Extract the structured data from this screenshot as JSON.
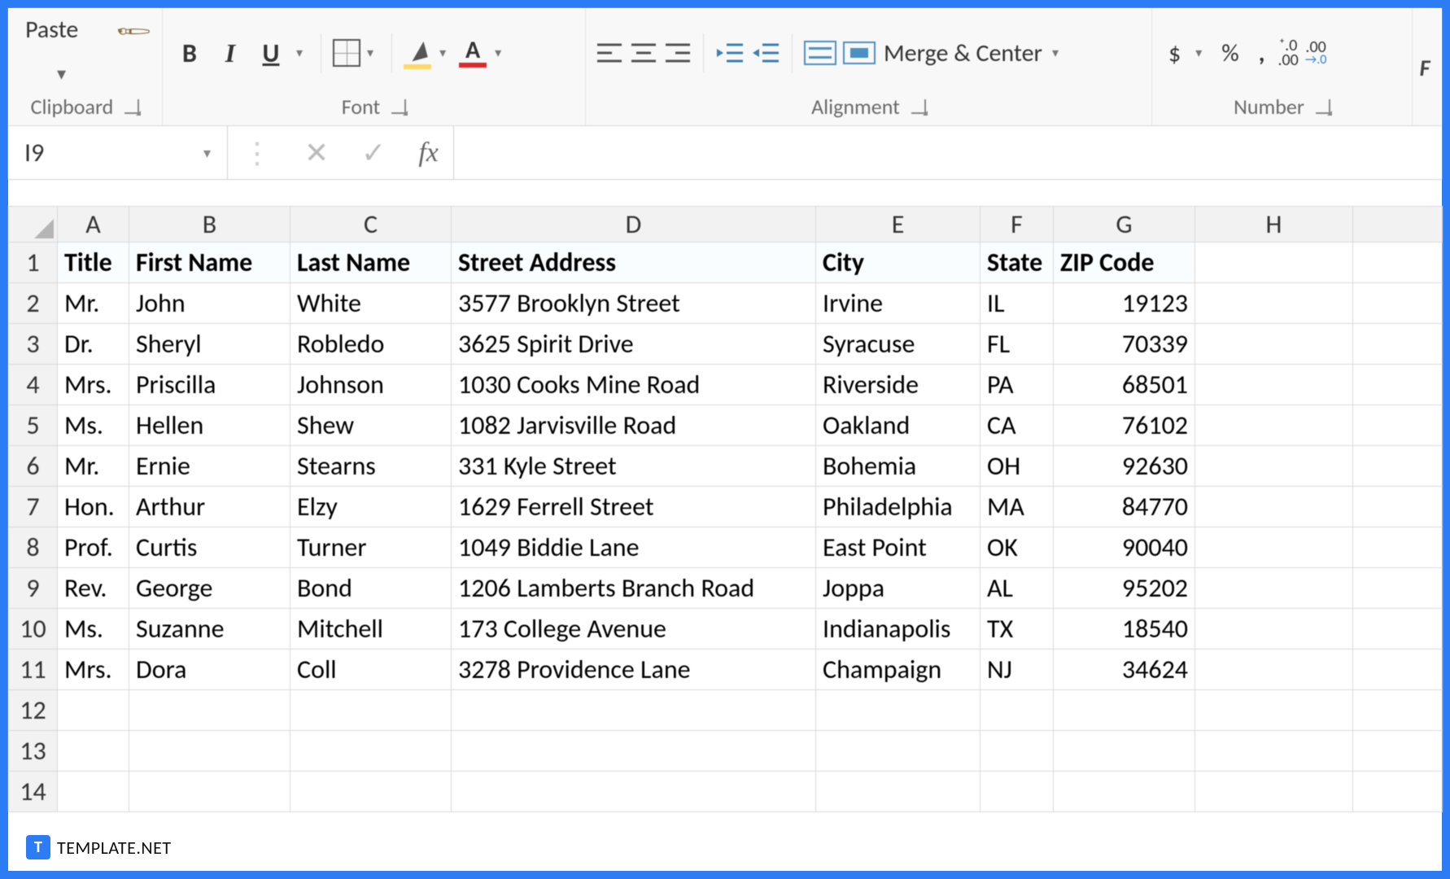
{
  "colors": {
    "frame_border": "#2b7cf5",
    "ribbon_bg": "#f8f8f8",
    "grid_border": "#d9d9d9",
    "header_fill_bg": "#fafdff",
    "fill_swatch": "#ffd966",
    "font_swatch": "#d92b2b"
  },
  "ribbon": {
    "clipboard": {
      "paste": "Paste",
      "label": "Clipboard"
    },
    "font": {
      "bold": "B",
      "italic": "I",
      "underline": "U",
      "font_color_letter": "A",
      "label": "Font"
    },
    "alignment": {
      "merge_center": "Merge & Center",
      "label": "Alignment"
    },
    "number": {
      "currency": "$",
      "percent": "%",
      "comma": ",",
      "inc_dec": ".00",
      "label": "Number"
    },
    "next_group_hint": "F"
  },
  "formula_bar": {
    "name_box": "I9",
    "fx_label": "fx",
    "value": ""
  },
  "sheet": {
    "col_letters": [
      "A",
      "B",
      "C",
      "D",
      "E",
      "F",
      "G",
      "H"
    ],
    "header_row_num": "1",
    "headers": {
      "A": "Title",
      "B": "First Name",
      "C": "Last Name",
      "D": "Street Address",
      "E": "City",
      "F": "State",
      "G": "ZIP Code"
    },
    "rows": [
      {
        "n": "2",
        "A": "Mr.",
        "B": "John",
        "C": "White",
        "D": "3577 Brooklyn Street",
        "E": "Irvine",
        "F": "IL",
        "G": "19123"
      },
      {
        "n": "3",
        "A": "Dr.",
        "B": "Sheryl",
        "C": "Robledo",
        "D": "3625 Spirit Drive",
        "E": "Syracuse",
        "F": "FL",
        "G": "70339"
      },
      {
        "n": "4",
        "A": "Mrs.",
        "B": "Priscilla",
        "C": "Johnson",
        "D": "1030 Cooks Mine Road",
        "E": "Riverside",
        "F": "PA",
        "G": "68501"
      },
      {
        "n": "5",
        "A": "Ms.",
        "B": "Hellen",
        "C": "Shew",
        "D": "1082 Jarvisville Road",
        "E": "Oakland",
        "F": "CA",
        "G": "76102"
      },
      {
        "n": "6",
        "A": "Mr.",
        "B": "Ernie",
        "C": "Stearns",
        "D": "331 Kyle Street",
        "E": "Bohemia",
        "F": "OH",
        "G": "92630"
      },
      {
        "n": "7",
        "A": "Hon.",
        "B": "Arthur",
        "C": "Elzy",
        "D": "1629 Ferrell Street",
        "E": "Philadelphia",
        "F": "MA",
        "G": "84770"
      },
      {
        "n": "8",
        "A": "Prof.",
        "B": "Curtis",
        "C": "Turner",
        "D": "1049 Biddie Lane",
        "E": "East Point",
        "F": "OK",
        "G": "90040"
      },
      {
        "n": "9",
        "A": "Rev.",
        "B": "George",
        "C": "Bond",
        "D": "1206 Lamberts Branch Road",
        "E": "Joppa",
        "F": "AL",
        "G": "95202"
      },
      {
        "n": "10",
        "A": "Ms.",
        "B": "Suzanne",
        "C": "Mitchell",
        "D": "173 College Avenue",
        "E": "Indianapolis",
        "F": "TX",
        "G": "18540"
      },
      {
        "n": "11",
        "A": "Mrs.",
        "B": "Dora",
        "C": "Coll",
        "D": "3278 Providence Lane",
        "E": "Champaign",
        "F": "NJ",
        "G": "34624"
      }
    ],
    "empty_rows": [
      "12",
      "13",
      "14"
    ]
  },
  "watermark": {
    "icon_letter": "T",
    "text": "TEMPLATE.NET"
  }
}
